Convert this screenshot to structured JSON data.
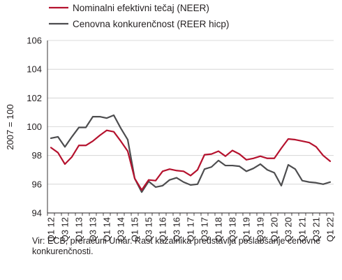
{
  "chart_data": {
    "type": "line",
    "ylabel": "2007 = 100",
    "ylim": [
      94,
      106
    ],
    "yticks": [
      94,
      96,
      98,
      100,
      102,
      104,
      106
    ],
    "grid": "horizontal",
    "legend_position": "top-left",
    "x": [
      "Q1 12",
      "Q2 12",
      "Q3 12",
      "Q4 12",
      "Q1 13",
      "Q2 13",
      "Q3 13",
      "Q4 13",
      "Q1 14",
      "Q2 14",
      "Q3 14",
      "Q4 14",
      "Q1 15",
      "Q2 15",
      "Q3 15",
      "Q4 15",
      "Q1 16",
      "Q2 16",
      "Q3 16",
      "Q4 16",
      "Q1 17",
      "Q2 17",
      "Q3 17",
      "Q4 17",
      "Q1 18",
      "Q2 18",
      "Q3 18",
      "Q4 18",
      "Q1 19",
      "Q2 19",
      "Q3 19",
      "Q4 19",
      "Q1 20",
      "Q2 20",
      "Q3 20",
      "Q4 20",
      "Q1 21",
      "Q2 21",
      "Q3 21",
      "Q4 21",
      "Q1 22"
    ],
    "tick_labels": [
      "Q1 12",
      "Q3 12",
      "Q1 13",
      "Q3 13",
      "Q1 14",
      "Q3 14",
      "Q1 15",
      "Q3 15",
      "Q1 16",
      "Q3 16",
      "Q1 17",
      "Q3 17",
      "Q1 18",
      "Q3 18",
      "Q1 19",
      "Q3 19",
      "Q1 20",
      "Q3 20",
      "Q1 21",
      "Q3 21",
      "Q1 22"
    ],
    "series": [
      {
        "name": "Nominalni efektivni tečaj (NEER)",
        "color": "#b5122e",
        "values": [
          98.55,
          98.2,
          97.4,
          97.9,
          98.7,
          98.7,
          99.0,
          99.4,
          99.75,
          99.65,
          99.0,
          98.3,
          96.4,
          95.6,
          96.3,
          96.25,
          96.9,
          97.05,
          96.95,
          96.9,
          96.6,
          97.0,
          98.05,
          98.1,
          98.3,
          97.95,
          98.35,
          98.1,
          97.7,
          97.8,
          97.95,
          97.8,
          97.8,
          98.5,
          99.15,
          99.1,
          99.0,
          98.9,
          98.6,
          98.0,
          97.6
        ]
      },
      {
        "name": "Cenovna konkurenčnost (REER hicp)",
        "color": "#4d4d4f",
        "values": [
          99.2,
          99.3,
          98.6,
          99.3,
          99.95,
          99.95,
          100.7,
          100.7,
          100.6,
          100.8,
          99.9,
          99.1,
          96.4,
          95.45,
          96.2,
          95.8,
          95.9,
          96.3,
          96.45,
          96.15,
          95.95,
          96.0,
          97.05,
          97.2,
          97.65,
          97.3,
          97.3,
          97.25,
          96.9,
          97.1,
          97.4,
          97.0,
          96.8,
          95.9,
          97.35,
          97.05,
          96.25,
          96.15,
          96.1,
          96.0,
          96.15
        ]
      }
    ]
  },
  "source_note": "Vir: ECB, preračuni Umar. Rast kazalnika predstavlja poslabšanje cenovne konkurenčnosti."
}
